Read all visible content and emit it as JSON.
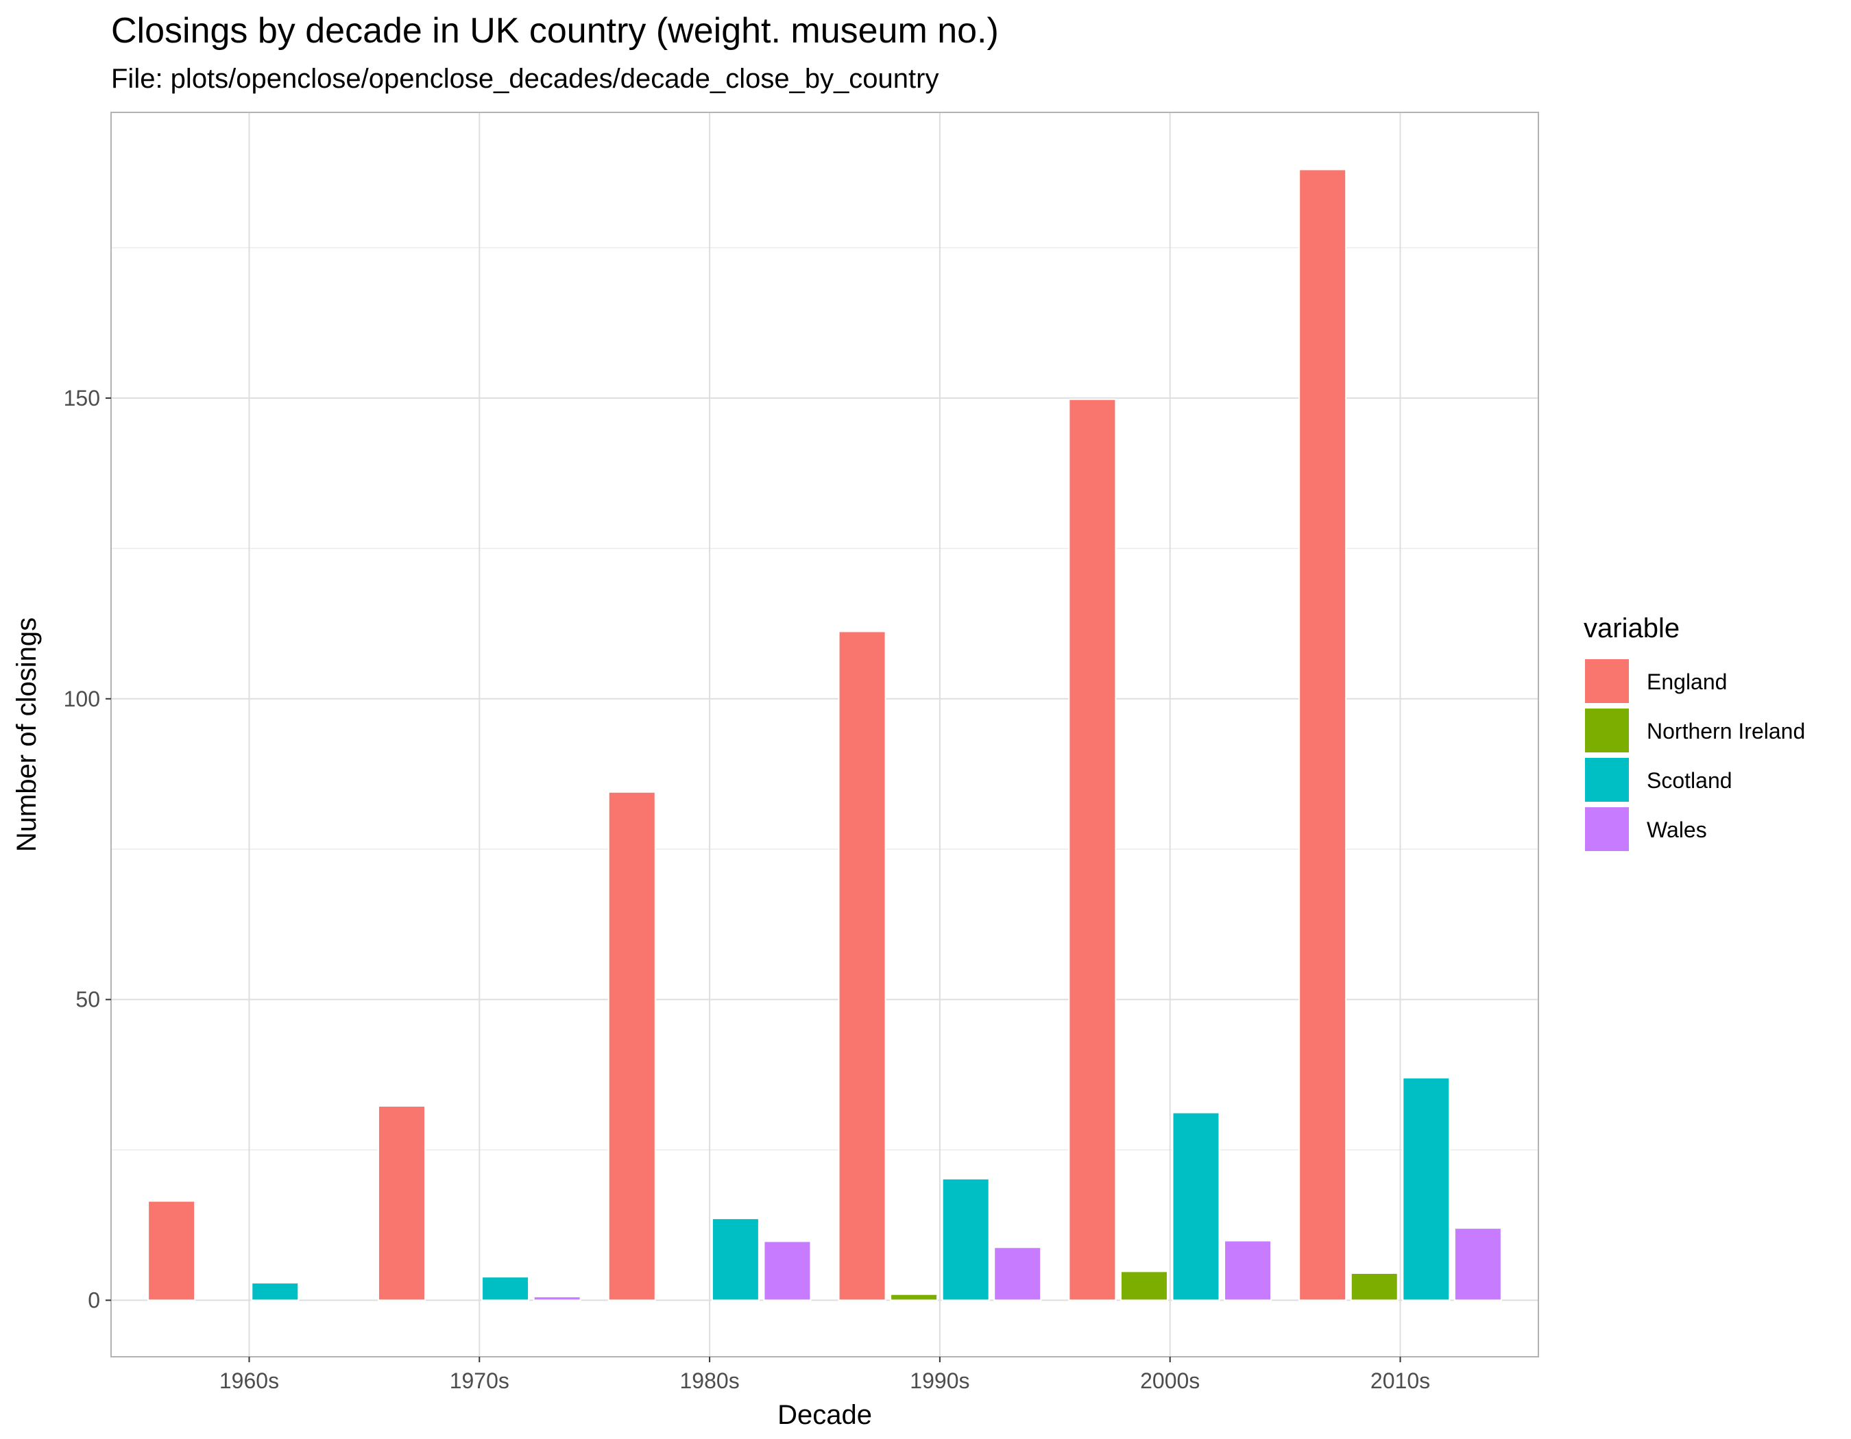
{
  "chart_data": {
    "type": "bar",
    "title": "Closings by decade in UK country (weight. museum no.)",
    "subtitle": "File: plots/openclose/openclose_decades/decade_close_by_country",
    "xlabel": "Decade",
    "ylabel": "Number of closings",
    "categories": [
      "1960s",
      "1970s",
      "1980s",
      "1990s",
      "2000s",
      "2010s"
    ],
    "series": [
      {
        "name": "England",
        "color": "#F8766D",
        "values": [
          16.5,
          32.3,
          84.5,
          111.2,
          149.8,
          188.0
        ]
      },
      {
        "name": "Northern Ireland",
        "color": "#7CAE00",
        "values": [
          0,
          0,
          0,
          1.0,
          4.8,
          4.5
        ]
      },
      {
        "name": "Scotland",
        "color": "#00BFC4",
        "values": [
          2.9,
          3.9,
          13.6,
          20.2,
          31.2,
          37.0
        ]
      },
      {
        "name": "Wales",
        "color": "#C77CFF",
        "values": [
          0,
          0.6,
          9.8,
          8.8,
          9.9,
          12.0
        ]
      }
    ],
    "ylim": [
      -9.4,
      197.5
    ],
    "yticks": [
      0,
      50,
      100,
      150
    ],
    "ytick_labels": [
      "0",
      "50",
      "100",
      "150"
    ],
    "grid": true,
    "legend": {
      "title": "variable",
      "position": "right"
    }
  }
}
